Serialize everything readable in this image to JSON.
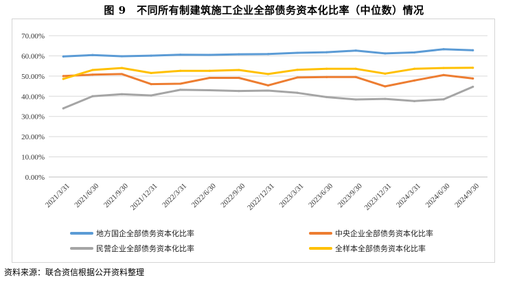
{
  "figure": {
    "title": "图 9　不同所有制建筑施工企业全部债务资本化比率（中位数）情况",
    "source": "资料来源：联合资信根据公开资料整理"
  },
  "chart_data": {
    "type": "line",
    "title": "图 9　不同所有制建筑施工企业全部债务资本化比率（中位数）情况",
    "categories": [
      "2021/3/31",
      "2021/6/30",
      "2021/9/30",
      "2021/12/31",
      "2022/3/31",
      "2022/6/30",
      "2022/9/30",
      "2022/12/31",
      "2023/3/31",
      "2023/6/30",
      "2023/9/30",
      "2023/12/31",
      "2024/3/31",
      "2024/6/30",
      "2024/9/30"
    ],
    "yticks": [
      "0.00%",
      "10.00%",
      "20.00%",
      "30.00%",
      "40.00%",
      "50.00%",
      "60.00%",
      "70.00%"
    ],
    "ylim": [
      0,
      70
    ],
    "grid": true,
    "legend_position": "bottom",
    "series": [
      {
        "name": "地方国企全部债务资本化比率",
        "color": "#5B9BD5",
        "values": [
          59.7,
          60.4,
          59.8,
          60.1,
          60.6,
          60.5,
          60.8,
          60.9,
          61.5,
          61.8,
          62.6,
          61.2,
          61.7,
          63.3,
          62.8
        ]
      },
      {
        "name": "中央企业全部债务资本化比率",
        "color": "#ED7D31",
        "values": [
          50.0,
          50.7,
          51.0,
          46.0,
          46.2,
          49.1,
          49.1,
          45.4,
          49.3,
          49.5,
          49.5,
          44.9,
          47.8,
          50.5,
          48.8
        ]
      },
      {
        "name": "民营企业全部债务资本化比率",
        "color": "#A5A5A5",
        "values": [
          34.0,
          40.0,
          41.0,
          40.4,
          43.2,
          43.0,
          42.6,
          42.8,
          41.7,
          39.6,
          38.4,
          38.7,
          37.6,
          38.5,
          44.7
        ]
      },
      {
        "name": "全样本全部债务资本化比率",
        "color": "#FFC000",
        "values": [
          48.6,
          53.0,
          54.0,
          51.5,
          52.6,
          52.6,
          53.0,
          51.0,
          53.1,
          53.6,
          53.6,
          51.2,
          53.6,
          54.0,
          54.1
        ]
      }
    ]
  }
}
